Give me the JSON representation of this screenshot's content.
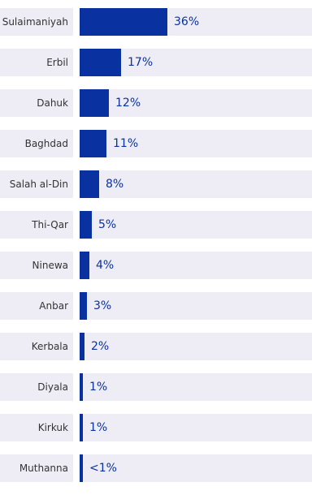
{
  "chart_data": {
    "type": "bar",
    "orientation": "horizontal",
    "categories": [
      "Sulaimaniyah",
      "Erbil",
      "Dahuk",
      "Baghdad",
      "Salah al-Din",
      "Thi-Qar",
      "Ninewa",
      "Anbar",
      "Kerbala",
      "Diyala",
      "Kirkuk",
      "Muthanna"
    ],
    "values": [
      36,
      17,
      12,
      11,
      8,
      5,
      4,
      3,
      2,
      1,
      1,
      0.5
    ],
    "value_labels": [
      "36%",
      "17%",
      "12%",
      "11%",
      "8%",
      "5%",
      "4%",
      "3%",
      "2%",
      "1%",
      "1%",
      "<1%"
    ],
    "xlim": [
      0,
      100
    ],
    "grid": false,
    "legend": "none"
  },
  "colors": {
    "bar": "#0a31a0",
    "track": "#eeedf6",
    "label_text": "#333333",
    "value_text": "#0a31a0"
  }
}
